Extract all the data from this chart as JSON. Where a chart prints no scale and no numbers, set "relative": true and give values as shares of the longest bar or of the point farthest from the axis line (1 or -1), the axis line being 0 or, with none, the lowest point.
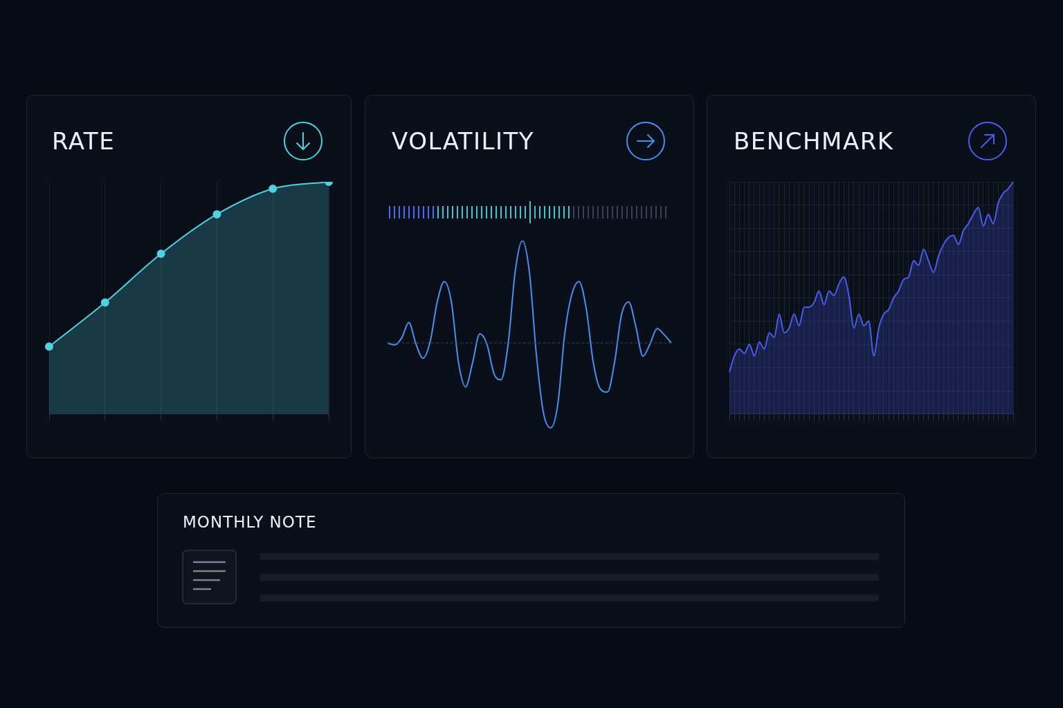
{
  "chart_data": [
    {
      "type": "area",
      "title": "RATE",
      "relative": true,
      "categories": [
        null,
        null,
        null,
        null,
        null,
        null
      ],
      "values": [
        0.29,
        0.48,
        0.69,
        0.86,
        0.97,
        1
      ],
      "color": "#4fd1e0",
      "marker": "circle",
      "grid": "x",
      "legend": false
    },
    {
      "type": "line",
      "title": "VOLATILITY",
      "relative": true,
      "categories": [
        null,
        null,
        null,
        null,
        null,
        null,
        null,
        null,
        null,
        null,
        null,
        null,
        null,
        null,
        null,
        null,
        null,
        null,
        null,
        null,
        null,
        null,
        null,
        null,
        null,
        null,
        null,
        null,
        null,
        null,
        null,
        null,
        null,
        null,
        null,
        null,
        null,
        null,
        null,
        null,
        null
      ],
      "values": [
        0,
        -0.02,
        0.05,
        0.2,
        -0.01,
        -0.15,
        0.01,
        0.4,
        0.6,
        0.4,
        -0.19,
        -0.43,
        -0.19,
        0.09,
        -0.01,
        -0.3,
        -0.36,
        -0.01,
        0.7,
        1,
        0.69,
        -0.13,
        -0.69,
        -0.83,
        -0.6,
        0.1,
        0.48,
        0.6,
        0.34,
        -0.19,
        -0.45,
        -0.48,
        -0.19,
        0.28,
        0.4,
        0.16,
        -0.13,
        -0.01,
        0.14,
        0.08,
        0
      ],
      "color": "#4a90f0",
      "ref_lines": [
        {
          "axis": "y",
          "value": 0,
          "line_style": "dashed",
          "color": "#3a4558"
        }
      ],
      "legend": false
    },
    {
      "type": "area",
      "title": "BENCHMARK",
      "relative": true,
      "categories": [
        null,
        null,
        null,
        null,
        null,
        null,
        null,
        null,
        null,
        null,
        null,
        null,
        null,
        null,
        null,
        null,
        null,
        null,
        null,
        null,
        null,
        null,
        null,
        null,
        null,
        null,
        null,
        null,
        null,
        null,
        null,
        null,
        null,
        null,
        null,
        null,
        null,
        null,
        null,
        null,
        null,
        null,
        null,
        null,
        null,
        null,
        null,
        null,
        null,
        null,
        null,
        null,
        null,
        null,
        null,
        null,
        null,
        null
      ],
      "values": [
        0.18,
        0.25,
        0.28,
        0.26,
        0.3,
        0.25,
        0.31,
        0.28,
        0.35,
        0.33,
        0.43,
        0.35,
        0.37,
        0.43,
        0.38,
        0.46,
        0.46,
        0.48,
        0.53,
        0.47,
        0.53,
        0.51,
        0.56,
        0.59,
        0.51,
        0.37,
        0.43,
        0.38,
        0.4,
        0.25,
        0.37,
        0.43,
        0.45,
        0.5,
        0.53,
        0.58,
        0.59,
        0.66,
        0.64,
        0.71,
        0.66,
        0.61,
        0.68,
        0.73,
        0.76,
        0.77,
        0.73,
        0.79,
        0.82,
        0.86,
        0.89,
        0.81,
        0.86,
        0.82,
        0.91,
        0.95,
        0.97,
        1
      ],
      "color": "#4a5ef0",
      "grid": true,
      "legend": false
    },
    {
      "type": "other",
      "title": "MONTHLY NOTE"
    }
  ]
}
